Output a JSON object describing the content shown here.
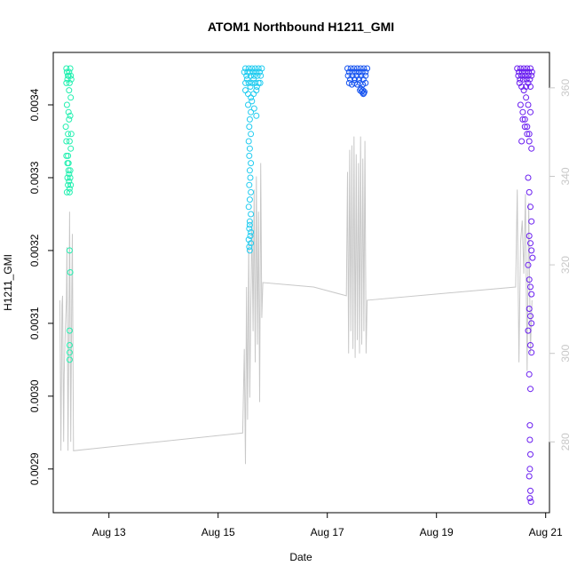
{
  "chart_data": {
    "type": "scatter",
    "title": "ATOM1 Northbound H1211_GMI",
    "xlabel": "Date",
    "ylabel": "H1211_GMI",
    "x_ticks": [
      "Aug 13",
      "Aug 15",
      "Aug 17",
      "Aug 19",
      "Aug 21"
    ],
    "x_tick_days": [
      13,
      15,
      17,
      19,
      21
    ],
    "xlim_days": [
      11.98,
      21.07
    ],
    "ylim": [
      0.00284,
      0.003472
    ],
    "y_ticks": [
      0.0029,
      0.003,
      0.0031,
      0.0032,
      0.0033,
      0.0034
    ],
    "y_tick_labels": [
      "0.0029",
      "0.0030",
      "0.0031",
      "0.0032",
      "0.0033",
      "0.0034"
    ],
    "y2lim": [
      264,
      368
    ],
    "y2_ticks": [
      280,
      300,
      320,
      340,
      360
    ],
    "y2_tick_labels": [
      "280",
      "300",
      "320",
      "340",
      "360"
    ],
    "grid": false,
    "scatter_groups": [
      {
        "color": "#22f0b0",
        "x": [
          12.22,
          12.23,
          12.25,
          12.27,
          12.29,
          12.3,
          12.22,
          12.24,
          12.26,
          12.28,
          12.31,
          12.3,
          12.23,
          12.26,
          12.29,
          12.27,
          12.21,
          12.25,
          12.28,
          12.3,
          12.22,
          12.26,
          12.29,
          12.24,
          12.27,
          12.3,
          12.23,
          12.28,
          12.25,
          12.29,
          12.26,
          12.24,
          12.27,
          12.28,
          12.29,
          12.28,
          12.28,
          12.28,
          12.28,
          12.27,
          12.22,
          12.25,
          12.28,
          12.31
        ],
        "y": [
          0.00345,
          0.003445,
          0.00344,
          0.003445,
          0.00345,
          0.00344,
          0.00343,
          0.003435,
          0.00344,
          0.00343,
          0.003435,
          0.00341,
          0.0034,
          0.00339,
          0.003385,
          0.00338,
          0.00337,
          0.00336,
          0.00335,
          0.00334,
          0.00333,
          0.00332,
          0.00331,
          0.0033,
          0.003295,
          0.00329,
          0.00328,
          0.003285,
          0.00329,
          0.0033,
          0.00331,
          0.00332,
          0.003305,
          0.0032,
          0.00317,
          0.00309,
          0.00307,
          0.00306,
          0.00305,
          0.00342,
          0.00335,
          0.00333,
          0.00328,
          0.00336
        ]
      },
      {
        "color": "#22ccf0",
        "x": [
          15.48,
          15.5,
          15.52,
          15.54,
          15.56,
          15.58,
          15.6,
          15.62,
          15.64,
          15.66,
          15.68,
          15.7,
          15.72,
          15.74,
          15.76,
          15.78,
          15.8,
          15.5,
          15.53,
          15.56,
          15.59,
          15.62,
          15.65,
          15.68,
          15.71,
          15.74,
          15.77,
          15.5,
          15.55,
          15.6,
          15.65,
          15.7,
          15.55,
          15.6,
          15.58,
          15.57,
          15.6,
          15.56,
          15.58,
          15.57,
          15.6,
          15.58,
          15.59,
          15.57,
          15.6,
          15.58,
          15.56,
          15.6,
          15.58,
          15.57,
          15.59,
          15.6,
          15.58,
          15.57,
          15.56,
          15.6,
          15.58,
          15.62,
          15.66,
          15.7
        ],
        "y": [
          0.003445,
          0.00345,
          0.00344,
          0.003445,
          0.00345,
          0.003445,
          0.00344,
          0.00345,
          0.003445,
          0.00344,
          0.00345,
          0.003445,
          0.00344,
          0.00345,
          0.003445,
          0.00344,
          0.00345,
          0.00343,
          0.003435,
          0.00343,
          0.003425,
          0.00343,
          0.003435,
          0.00343,
          0.003425,
          0.00343,
          0.00343,
          0.00342,
          0.003415,
          0.00341,
          0.003415,
          0.00342,
          0.0034,
          0.00339,
          0.00338,
          0.00337,
          0.00336,
          0.00335,
          0.00334,
          0.00333,
          0.00332,
          0.00331,
          0.0033,
          0.00329,
          0.00328,
          0.00327,
          0.00326,
          0.00325,
          0.00324,
          0.00323,
          0.00322,
          0.00321,
          0.0032,
          0.003205,
          0.003215,
          0.003225,
          0.003235,
          0.003405,
          0.003395,
          0.003385
        ]
      },
      {
        "color": "#1855f0",
        "x": [
          17.37,
          17.4,
          17.43,
          17.46,
          17.49,
          17.52,
          17.55,
          17.58,
          17.61,
          17.64,
          17.67,
          17.7,
          17.73,
          17.38,
          17.42,
          17.46,
          17.5,
          17.54,
          17.58,
          17.62,
          17.66,
          17.7,
          17.4,
          17.45,
          17.5,
          17.55,
          17.6,
          17.65,
          17.7,
          17.6,
          17.63,
          17.66,
          17.68,
          17.62,
          17.65,
          17.67
        ],
        "y": [
          0.00345,
          0.003445,
          0.00345,
          0.003445,
          0.00345,
          0.003445,
          0.00345,
          0.003445,
          0.00345,
          0.003445,
          0.00345,
          0.003445,
          0.00345,
          0.00344,
          0.003435,
          0.00344,
          0.003435,
          0.00344,
          0.003435,
          0.00344,
          0.003435,
          0.00344,
          0.00343,
          0.003428,
          0.00343,
          0.003428,
          0.00343,
          0.003428,
          0.00343,
          0.00342,
          0.003418,
          0.003415,
          0.003418,
          0.003422,
          0.00342,
          0.003416
        ]
      },
      {
        "color": "#6a1ef0",
        "x": [
          20.48,
          20.51,
          20.54,
          20.57,
          20.6,
          20.63,
          20.66,
          20.69,
          20.72,
          20.75,
          20.5,
          20.53,
          20.56,
          20.59,
          20.62,
          20.65,
          20.68,
          20.71,
          20.74,
          20.52,
          20.56,
          20.6,
          20.64,
          20.68,
          20.72,
          20.54,
          20.58,
          20.62,
          20.66,
          20.7,
          20.56,
          20.6,
          20.64,
          20.68,
          20.72,
          20.58,
          20.62,
          20.66,
          20.7,
          20.74,
          20.68,
          20.7,
          20.72,
          20.74,
          20.7,
          20.72,
          20.74,
          20.76,
          20.68,
          20.7,
          20.72,
          20.74,
          20.7,
          20.72,
          20.74,
          20.68,
          20.72,
          20.74,
          20.7,
          20.72,
          20.71,
          20.71,
          20.72,
          20.71,
          20.7,
          20.72,
          20.71,
          20.73
        ],
        "y": [
          0.00345,
          0.003445,
          0.00345,
          0.003445,
          0.00345,
          0.003445,
          0.00345,
          0.003445,
          0.00345,
          0.003445,
          0.00344,
          0.003435,
          0.00344,
          0.003435,
          0.00344,
          0.003435,
          0.00344,
          0.003435,
          0.00344,
          0.00343,
          0.003425,
          0.00342,
          0.003425,
          0.00343,
          0.003425,
          0.0034,
          0.00339,
          0.00338,
          0.00337,
          0.00336,
          0.00335,
          0.00349,
          0.00341,
          0.0034,
          0.00339,
          0.00338,
          0.00337,
          0.00336,
          0.00335,
          0.00334,
          0.0033,
          0.00328,
          0.00326,
          0.00324,
          0.00322,
          0.00321,
          0.0032,
          0.00319,
          0.00318,
          0.00316,
          0.00315,
          0.00314,
          0.00312,
          0.00311,
          0.0031,
          0.00309,
          0.00307,
          0.00306,
          0.00303,
          0.00301,
          0.00296,
          0.00294,
          0.00292,
          0.0029,
          0.00289,
          0.00287,
          0.00286,
          0.002855
        ]
      }
    ],
    "line_series": {
      "color": "#c8c8c8",
      "x": [
        12.1,
        12.12,
        12.14,
        12.15,
        12.17,
        12.18,
        12.2,
        12.22,
        12.23,
        12.25,
        12.27,
        12.28,
        12.3,
        12.32,
        12.33,
        12.35,
        15.45,
        15.48,
        15.5,
        15.52,
        15.54,
        15.56,
        15.58,
        15.6,
        15.62,
        15.64,
        15.66,
        15.68,
        15.7,
        15.72,
        15.74,
        15.76,
        15.78,
        15.8,
        15.82,
        16.75,
        17.35,
        17.37,
        17.39,
        17.41,
        17.43,
        17.45,
        17.47,
        17.49,
        17.51,
        17.53,
        17.55,
        17.57,
        17.59,
        17.61,
        17.63,
        17.65,
        17.67,
        17.69,
        17.71,
        17.73,
        20.45,
        20.48,
        20.51,
        20.54,
        20.57,
        20.6,
        20.63,
        20.66,
        20.69,
        20.72,
        20.75
      ],
      "y": [
        312,
        278,
        311,
        313,
        280,
        295,
        305,
        312,
        324,
        278,
        310,
        332,
        280,
        315,
        327,
        278,
        282,
        301,
        275,
        315,
        285,
        325,
        290,
        312,
        330,
        305,
        337,
        298,
        340,
        302,
        332,
        289,
        343,
        308,
        316,
        315,
        313,
        341,
        300,
        346,
        305,
        347,
        301,
        349,
        299,
        345,
        303,
        343,
        300,
        349,
        302,
        344,
        305,
        348,
        300,
        312,
        315,
        337,
        298,
        325,
        330,
        318,
        336,
        296,
        334,
        300,
        312
      ]
    }
  }
}
